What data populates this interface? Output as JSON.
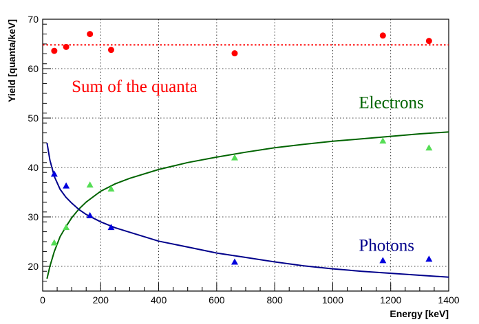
{
  "chart_data": {
    "type": "scatter",
    "xlabel": "Energy [keV]",
    "ylabel": "Yield [quanta/keV]",
    "xlim": [
      0,
      1400
    ],
    "ylim": [
      15,
      70
    ],
    "x_ticks": [
      0,
      200,
      400,
      600,
      800,
      1000,
      1200,
      1400
    ],
    "y_ticks": [
      20,
      30,
      40,
      50,
      60,
      70
    ],
    "grid": true,
    "annotations": [
      {
        "text": "Sum of the quanta",
        "color": "#ff0000",
        "x": 100,
        "y": 55.3
      },
      {
        "text": "Electrons",
        "color": "#006400",
        "x": 1090,
        "y": 52.0
      },
      {
        "text": "Photons",
        "color": "#00008b",
        "x": 1090,
        "y": 23.1
      }
    ],
    "series": [
      {
        "marker": "circle",
        "color": "#ff0000",
        "points": [
          [
            40,
            63.6
          ],
          [
            81,
            64.4
          ],
          [
            163,
            67.0
          ],
          [
            236,
            63.8
          ],
          [
            662,
            63.1
          ],
          [
            1173,
            66.7
          ],
          [
            1332,
            65.6
          ]
        ]
      },
      {
        "marker": "triangle",
        "color": "#55dd55",
        "points": [
          [
            40,
            24.8
          ],
          [
            81,
            27.9
          ],
          [
            163,
            36.5
          ],
          [
            236,
            35.7
          ],
          [
            662,
            42.0
          ],
          [
            1173,
            45.4
          ],
          [
            1332,
            44.0
          ]
        ]
      },
      {
        "marker": "triangle",
        "color": "#0000dd",
        "points": [
          [
            40,
            38.7
          ],
          [
            81,
            36.3
          ],
          [
            163,
            30.3
          ],
          [
            236,
            27.9
          ],
          [
            662,
            20.9
          ],
          [
            1173,
            21.2
          ],
          [
            1332,
            21.5
          ]
        ]
      }
    ],
    "lines": [
      {
        "style": "dotted",
        "color": "#ff0000",
        "points": [
          [
            0,
            64.8
          ],
          [
            1400,
            64.8
          ]
        ]
      },
      {
        "style": "solid",
        "color": "#006400",
        "points": [
          [
            15,
            17.5
          ],
          [
            25,
            20.0
          ],
          [
            40,
            23.0
          ],
          [
            60,
            26.0
          ],
          [
            80,
            28.0
          ],
          [
            100,
            29.8
          ],
          [
            125,
            31.6
          ],
          [
            150,
            33.0
          ],
          [
            200,
            35.2
          ],
          [
            250,
            36.7
          ],
          [
            300,
            37.8
          ],
          [
            400,
            39.6
          ],
          [
            500,
            41.0
          ],
          [
            600,
            42.1
          ],
          [
            700,
            43.1
          ],
          [
            800,
            44.0
          ],
          [
            900,
            44.7
          ],
          [
            1000,
            45.3
          ],
          [
            1100,
            45.8
          ],
          [
            1200,
            46.3
          ],
          [
            1300,
            46.8
          ],
          [
            1400,
            47.2
          ]
        ]
      },
      {
        "style": "solid",
        "color": "#00008b",
        "points": [
          [
            15,
            45.0
          ],
          [
            25,
            41.5
          ],
          [
            40,
            38.2
          ],
          [
            60,
            35.6
          ],
          [
            80,
            34.0
          ],
          [
            100,
            32.8
          ],
          [
            125,
            31.5
          ],
          [
            150,
            30.5
          ],
          [
            200,
            29.0
          ],
          [
            250,
            27.8
          ],
          [
            300,
            26.9
          ],
          [
            400,
            25.1
          ],
          [
            500,
            23.9
          ],
          [
            600,
            22.7
          ],
          [
            700,
            21.8
          ],
          [
            800,
            20.9
          ],
          [
            900,
            20.1
          ],
          [
            1000,
            19.5
          ],
          [
            1100,
            19.0
          ],
          [
            1200,
            18.6
          ],
          [
            1300,
            18.2
          ],
          [
            1400,
            17.8
          ]
        ]
      }
    ]
  }
}
